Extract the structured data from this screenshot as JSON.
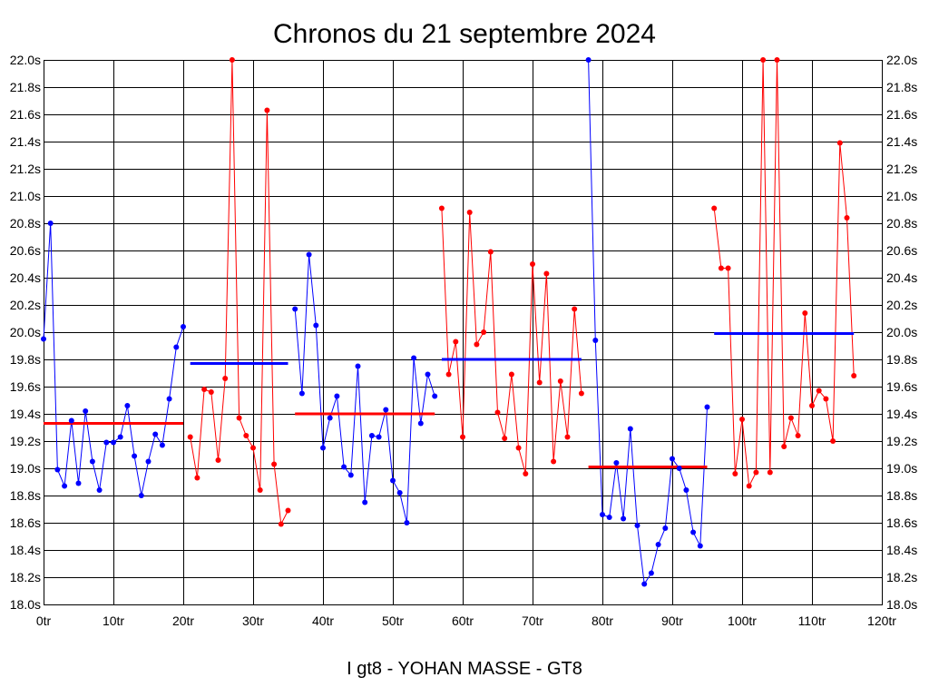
{
  "chart_data": {
    "type": "line",
    "title": "Chronos du 21 septembre 2024",
    "footer": "I gt8 - YOHAN MASSE - GT8",
    "xlim": [
      0,
      120
    ],
    "ylim": [
      18.0,
      22.0
    ],
    "grid": true,
    "x_ticks": [
      {
        "value": 0,
        "label": "0tr"
      },
      {
        "value": 10,
        "label": "10tr"
      },
      {
        "value": 20,
        "label": "20tr"
      },
      {
        "value": 30,
        "label": "30tr"
      },
      {
        "value": 40,
        "label": "40tr"
      },
      {
        "value": 50,
        "label": "50tr"
      },
      {
        "value": 60,
        "label": "60tr"
      },
      {
        "value": 70,
        "label": "70tr"
      },
      {
        "value": 80,
        "label": "80tr"
      },
      {
        "value": 90,
        "label": "90tr"
      },
      {
        "value": 100,
        "label": "100tr"
      },
      {
        "value": 110,
        "label": "110tr"
      },
      {
        "value": 120,
        "label": "120tr"
      }
    ],
    "y_ticks": [
      {
        "value": 18.0,
        "label": "18.0s"
      },
      {
        "value": 18.2,
        "label": "18.2s"
      },
      {
        "value": 18.4,
        "label": "18.4s"
      },
      {
        "value": 18.6,
        "label": "18.6s"
      },
      {
        "value": 18.8,
        "label": "18.8s"
      },
      {
        "value": 19.0,
        "label": "19.0s"
      },
      {
        "value": 19.2,
        "label": "19.2s"
      },
      {
        "value": 19.4,
        "label": "19.4s"
      },
      {
        "value": 19.6,
        "label": "19.6s"
      },
      {
        "value": 19.8,
        "label": "19.8s"
      },
      {
        "value": 20.0,
        "label": "20.0s"
      },
      {
        "value": 20.2,
        "label": "20.2s"
      },
      {
        "value": 20.4,
        "label": "20.4s"
      },
      {
        "value": 20.6,
        "label": "20.6s"
      },
      {
        "value": 20.8,
        "label": "20.8s"
      },
      {
        "value": 21.0,
        "label": "21.0s"
      },
      {
        "value": 21.2,
        "label": "21.2s"
      },
      {
        "value": 21.4,
        "label": "21.4s"
      },
      {
        "value": 21.6,
        "label": "21.6s"
      },
      {
        "value": 21.8,
        "label": "21.8s"
      },
      {
        "value": 22.0,
        "label": "22.0s"
      }
    ],
    "series": [
      {
        "color": "#0000ff",
        "x": [
          0,
          1,
          2,
          3,
          4,
          5,
          6,
          7,
          8,
          9,
          10,
          11,
          12,
          13,
          14,
          15,
          16,
          17,
          18,
          19,
          20
        ],
        "y": [
          19.95,
          20.8,
          18.99,
          18.87,
          19.35,
          18.89,
          19.42,
          19.05,
          18.84,
          19.19,
          19.19,
          19.23,
          19.46,
          19.09,
          18.8,
          19.05,
          19.25,
          19.17,
          19.51,
          19.89,
          20.04
        ]
      },
      {
        "color": "#ff0000",
        "x": [
          21,
          22,
          23,
          24,
          25,
          26,
          27,
          28,
          29,
          30,
          31,
          32,
          33,
          34,
          35
        ],
        "y": [
          19.23,
          18.93,
          19.58,
          19.56,
          19.06,
          19.66,
          22.0,
          19.37,
          19.24,
          19.15,
          18.84,
          21.63,
          19.03,
          18.59,
          18.69
        ]
      },
      {
        "color": "#0000ff",
        "x": [
          36,
          37,
          38,
          39,
          40,
          41,
          42,
          43,
          44,
          45,
          46,
          47,
          48,
          49,
          50,
          51,
          52,
          53,
          54,
          55,
          56
        ],
        "y": [
          20.17,
          19.55,
          20.57,
          20.05,
          19.15,
          19.37,
          19.53,
          19.01,
          18.95,
          19.75,
          18.75,
          19.24,
          19.23,
          19.43,
          18.91,
          18.82,
          18.6,
          19.81,
          19.33,
          19.69,
          19.53
        ]
      },
      {
        "color": "#ff0000",
        "x": [
          57,
          58,
          59,
          60,
          61,
          62,
          63,
          64,
          65,
          66,
          67,
          68,
          69,
          70,
          71,
          72,
          73,
          74,
          75,
          76,
          77
        ],
        "y": [
          20.91,
          19.69,
          19.93,
          19.23,
          20.88,
          19.91,
          20.0,
          20.59,
          19.41,
          19.22,
          19.69,
          19.15,
          18.96,
          20.5,
          19.63,
          20.43,
          19.05,
          19.64,
          19.23,
          20.17,
          19.55
        ]
      },
      {
        "color": "#0000ff",
        "x": [
          78,
          79,
          80,
          81,
          82,
          83,
          84,
          85,
          86,
          87,
          88,
          89,
          90,
          91,
          92,
          93,
          94,
          95
        ],
        "y": [
          22.0,
          19.94,
          18.66,
          18.64,
          19.04,
          18.63,
          19.29,
          18.58,
          18.15,
          18.23,
          18.44,
          18.56,
          19.07,
          19.0,
          18.84,
          18.53,
          18.43,
          19.45
        ]
      },
      {
        "color": "#ff0000",
        "x": [
          96,
          97,
          98,
          99,
          100,
          101,
          102,
          103,
          104,
          105,
          106,
          107,
          108,
          109,
          110,
          111,
          112,
          113,
          114,
          115,
          116
        ],
        "y": [
          20.91,
          20.47,
          20.47,
          18.96,
          19.36,
          18.87,
          18.97,
          22.0,
          18.97,
          22.0,
          19.16,
          19.37,
          19.24,
          20.14,
          19.46,
          19.57,
          19.51,
          19.2,
          21.39,
          20.84,
          19.68
        ]
      }
    ],
    "average_lines": [
      {
        "x": [
          0,
          20
        ],
        "y": 19.33,
        "color": "#ff0000"
      },
      {
        "x": [
          21,
          35
        ],
        "y": 19.77,
        "color": "#0000ff"
      },
      {
        "x": [
          36,
          56
        ],
        "y": 19.4,
        "color": "#ff0000"
      },
      {
        "x": [
          57,
          77
        ],
        "y": 19.8,
        "color": "#0000ff"
      },
      {
        "x": [
          78,
          95
        ],
        "y": 19.01,
        "color": "#ff0000"
      },
      {
        "x": [
          96,
          116
        ],
        "y": 19.99,
        "color": "#0000ff"
      }
    ]
  }
}
